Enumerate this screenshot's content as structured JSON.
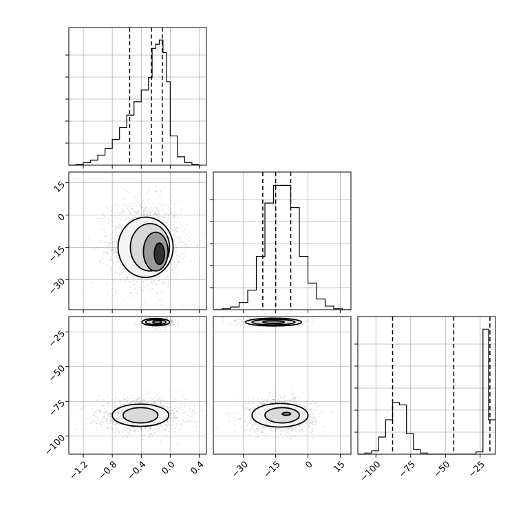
{
  "chart_data": {
    "type": "corner",
    "colors": {
      "line": "#000000",
      "grid": "#b0b0b0",
      "points": "#000000"
    },
    "grid": true,
    "parameters": [
      {
        "id": "p0",
        "range": [
          -1.4,
          0.5
        ],
        "ticks": [
          -1.2,
          -0.8,
          -0.4,
          0.0,
          0.4
        ],
        "tick_labels": [
          "−1.2",
          "−0.8",
          "−0.4",
          "0.0",
          "0.4"
        ]
      },
      {
        "id": "p1",
        "range": [
          -44,
          20
        ],
        "ticks": [
          -30,
          -15,
          0,
          15
        ],
        "tick_labels": [
          "−30",
          "−15",
          "0",
          "15"
        ]
      },
      {
        "id": "p2",
        "range": [
          -113,
          -14
        ],
        "ticks": [
          -100,
          -75,
          -50,
          -25
        ],
        "tick_labels": [
          "−100",
          "−75",
          "−50",
          "−25"
        ]
      }
    ],
    "histograms": [
      {
        "param": "p0",
        "bin_edges": [
          -1.4,
          -1.3,
          -1.2,
          -1.1,
          -1.0,
          -0.9,
          -0.8,
          -0.7,
          -0.6,
          -0.5,
          -0.4,
          -0.3,
          -0.25,
          -0.2,
          -0.15,
          -0.1,
          -0.05,
          0.0,
          0.1,
          0.2,
          0.3,
          0.4
        ],
        "counts": [
          0,
          1,
          3,
          6,
          12,
          20,
          31,
          45,
          60,
          76,
          90,
          105,
          140,
          145,
          150,
          135,
          100,
          35,
          10,
          3,
          1
        ],
        "ylim": [
          0,
          165
        ],
        "quantiles": [
          -0.56,
          -0.26,
          -0.11
        ]
      },
      {
        "param": "p1",
        "bin_edges": [
          -44,
          -40,
          -36,
          -32,
          -28,
          -24,
          -20,
          -16,
          -12,
          -8,
          -4,
          0,
          4,
          8,
          12,
          16,
          20
        ],
        "counts": [
          0,
          1,
          3,
          8,
          22,
          60,
          120,
          140,
          140,
          115,
          60,
          30,
          12,
          4,
          1,
          0
        ],
        "ylim": [
          0,
          155
        ],
        "quantiles": [
          -21,
          -15,
          -8
        ]
      },
      {
        "param": "p2",
        "bin_edges": [
          -113,
          -108,
          -103,
          -98,
          -93,
          -88,
          -83,
          -78,
          -73,
          -68,
          -63,
          -58,
          -53,
          -48,
          -43,
          -38,
          -33,
          -28,
          -23,
          -19,
          -14
        ],
        "counts": [
          0,
          1,
          3,
          15,
          30,
          45,
          43,
          18,
          4,
          1,
          0,
          0,
          0,
          0,
          0,
          0,
          0,
          2,
          109,
          30
        ],
        "ylim": [
          0,
          120
        ],
        "quantiles": [
          -88,
          -44,
          -18
        ]
      }
    ],
    "scatter_clusters": [
      {
        "panel": "p0-p1",
        "cx": -0.35,
        "cy": -13,
        "sx": 0.25,
        "sy": 10,
        "n": 1800,
        "contours": [
          [
            -0.34,
            -15,
            0.38,
            14
          ],
          [
            -0.28,
            -15,
            0.27,
            11
          ],
          [
            -0.2,
            -17,
            0.17,
            9
          ],
          [
            -0.15,
            -18,
            0.07,
            5
          ]
        ]
      },
      {
        "panel": "p0-p2",
        "cx": -0.4,
        "cy": -85,
        "sx": 0.3,
        "sy": 6,
        "n": 1300,
        "contours": [
          [
            -0.41,
            -85,
            0.39,
            8
          ],
          [
            -0.41,
            -85,
            0.24,
            5.5
          ]
        ]
      },
      {
        "panel": "p0-p2",
        "cx": -0.15,
        "cy": -18,
        "sx": 0.1,
        "sy": 1.5,
        "n": 400,
        "contours": [
          [
            -0.2,
            -18,
            0.19,
            2.6
          ],
          [
            -0.2,
            -18,
            0.14,
            1.8
          ],
          [
            -0.18,
            -18,
            0.06,
            1
          ]
        ]
      },
      {
        "panel": "p1-p2",
        "cx": -13,
        "cy": -85,
        "sx": 8,
        "sy": 6,
        "n": 1300,
        "contours": [
          [
            -13,
            -85,
            13,
            8.5
          ],
          [
            -12,
            -85,
            8,
            5.5
          ],
          [
            -10,
            -84,
            2,
            1
          ]
        ]
      },
      {
        "panel": "p1-p2",
        "cx": -17,
        "cy": -18,
        "sx": 7,
        "sy": 1.5,
        "n": 400,
        "contours": [
          [
            -16,
            -18,
            13,
            2.8
          ],
          [
            -16,
            -18,
            10,
            2
          ],
          [
            -16,
            -18,
            5,
            1
          ]
        ]
      }
    ]
  }
}
